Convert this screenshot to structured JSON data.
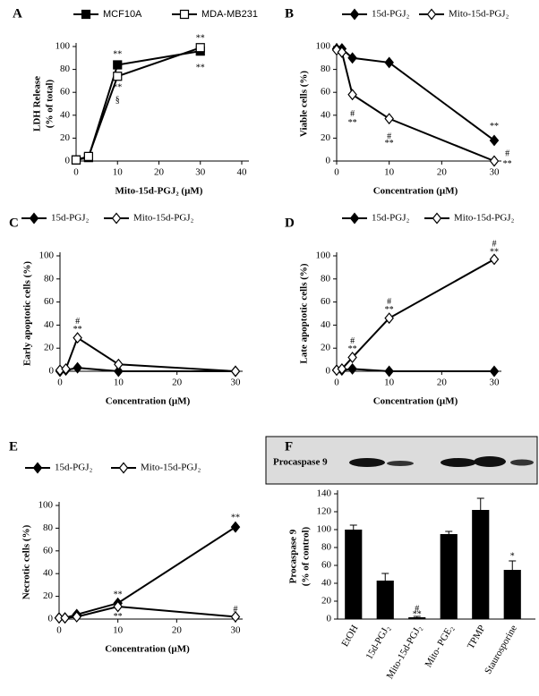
{
  "chart_data": [
    {
      "type": "line",
      "panel": "A",
      "xlabel": "Mito-15d-PGJ₂ (µM)",
      "ylabel": [
        "LDH Release",
        "(% of total)"
      ],
      "x": [
        0,
        3,
        10,
        30
      ],
      "xlim": [
        0,
        40
      ],
      "xticks": [
        0,
        10,
        20,
        30,
        40
      ],
      "ylim": [
        0,
        100
      ],
      "yticks": [
        0,
        20,
        40,
        60,
        80,
        100
      ],
      "series": [
        {
          "name": "MCF10A",
          "color": "#000000",
          "marker": "square",
          "marker_fill": "#000000",
          "values": [
            1,
            3,
            84,
            96
          ]
        },
        {
          "name": "MDA-MB231",
          "color": "#000000",
          "marker": "square",
          "marker_fill": "#ffffff",
          "values": [
            1,
            4,
            74,
            99
          ]
        }
      ],
      "annotations": [
        "**",
        "**",
        "§",
        "**",
        "**"
      ]
    },
    {
      "type": "line",
      "panel": "B",
      "xlabel": "Concentration (µM)",
      "ylabel": [
        "Viable cells (%)"
      ],
      "x": [
        0,
        1,
        3,
        10,
        30
      ],
      "xlim": [
        0,
        30
      ],
      "xticks": [
        0,
        10,
        20,
        30
      ],
      "ylim": [
        0,
        100
      ],
      "yticks": [
        0,
        20,
        40,
        60,
        80,
        100
      ],
      "series": [
        {
          "name": "15d-PGJ₂",
          "color": "#000000",
          "marker": "diamond",
          "marker_fill": "#000000",
          "values": [
            98,
            98,
            90,
            86,
            18
          ]
        },
        {
          "name": "Mito-15d-PGJ₂",
          "color": "#000000",
          "marker": "diamond",
          "marker_fill": "#ffffff",
          "values": [
            97,
            95,
            58,
            37,
            0
          ]
        }
      ],
      "annotations": [
        "**",
        "#",
        "**",
        "#",
        "**",
        "#",
        "**"
      ]
    },
    {
      "type": "line",
      "panel": "C",
      "xlabel": "Concentration (µM)",
      "ylabel": [
        "Early apoptotic cells (%)"
      ],
      "x": [
        0,
        1,
        3,
        10,
        30
      ],
      "xlim": [
        0,
        30
      ],
      "xticks": [
        0,
        10,
        20,
        30
      ],
      "ylim": [
        0,
        100
      ],
      "yticks": [
        0,
        20,
        40,
        60,
        80,
        100
      ],
      "series": [
        {
          "name": "15d-PGJ₂",
          "color": "#000000",
          "marker": "diamond",
          "marker_fill": "#000000",
          "values": [
            0,
            1,
            3,
            0,
            0
          ]
        },
        {
          "name": "Mito-15d-PGJ₂",
          "color": "#000000",
          "marker": "diamond",
          "marker_fill": "#ffffff",
          "values": [
            1,
            2,
            29,
            6,
            0
          ]
        }
      ],
      "annotations": [
        "#",
        "**"
      ]
    },
    {
      "type": "line",
      "panel": "D",
      "xlabel": "Concentration (µM)",
      "ylabel": [
        "Late apoptotic cells (%)"
      ],
      "x": [
        0,
        1,
        3,
        10,
        30
      ],
      "xlim": [
        0,
        30
      ],
      "xticks": [
        0,
        10,
        20,
        30
      ],
      "ylim": [
        0,
        100
      ],
      "yticks": [
        0,
        20,
        40,
        60,
        80,
        100
      ],
      "series": [
        {
          "name": "15d-PGJ₂",
          "color": "#000000",
          "marker": "diamond",
          "marker_fill": "#000000",
          "values": [
            1,
            1,
            2,
            0,
            0
          ]
        },
        {
          "name": "Mito-15d-PGJ₂",
          "color": "#000000",
          "marker": "diamond",
          "marker_fill": "#ffffff",
          "values": [
            1,
            2,
            12,
            46,
            97
          ]
        }
      ],
      "annotations": [
        "#",
        "**",
        "#",
        "**",
        "#",
        "**"
      ]
    },
    {
      "type": "line",
      "panel": "E",
      "xlabel": "Concentration (µM)",
      "ylabel": [
        "Necrotic cells (%)"
      ],
      "x": [
        0,
        1,
        3,
        10,
        30
      ],
      "xlim": [
        0,
        30
      ],
      "xticks": [
        0,
        10,
        20,
        30
      ],
      "ylim": [
        0,
        100
      ],
      "yticks": [
        0,
        20,
        40,
        60,
        80,
        100
      ],
      "series": [
        {
          "name": "15d-PGJ₂",
          "color": "#000000",
          "marker": "diamond",
          "marker_fill": "#000000",
          "values": [
            1,
            1,
            4,
            14,
            81
          ]
        },
        {
          "name": "Mito-15d-PGJ₂",
          "color": "#000000",
          "marker": "diamond",
          "marker_fill": "#ffffff",
          "values": [
            1,
            1,
            2,
            11,
            2
          ]
        }
      ],
      "annotations": [
        "**",
        "**",
        "**",
        "#"
      ]
    },
    {
      "type": "bar",
      "panel": "F",
      "blot_label": "Procaspase 9",
      "ylabel": [
        "Procaspase  9",
        "(% of control)"
      ],
      "categories": [
        "EtOH",
        "15d-PGJ₂",
        "Mito-15d-PGJ₂",
        "Mito- PGE₂",
        "TPMP",
        "Staurosporine"
      ],
      "values": [
        100,
        43,
        2,
        95,
        122,
        55
      ],
      "errors": [
        5,
        8,
        1,
        3,
        13,
        10
      ],
      "color": "#000000",
      "ylim": [
        0,
        140
      ],
      "yticks": [
        0,
        20,
        40,
        60,
        80,
        100,
        120,
        140
      ],
      "annotations": [
        "#",
        "**",
        "*"
      ]
    }
  ]
}
